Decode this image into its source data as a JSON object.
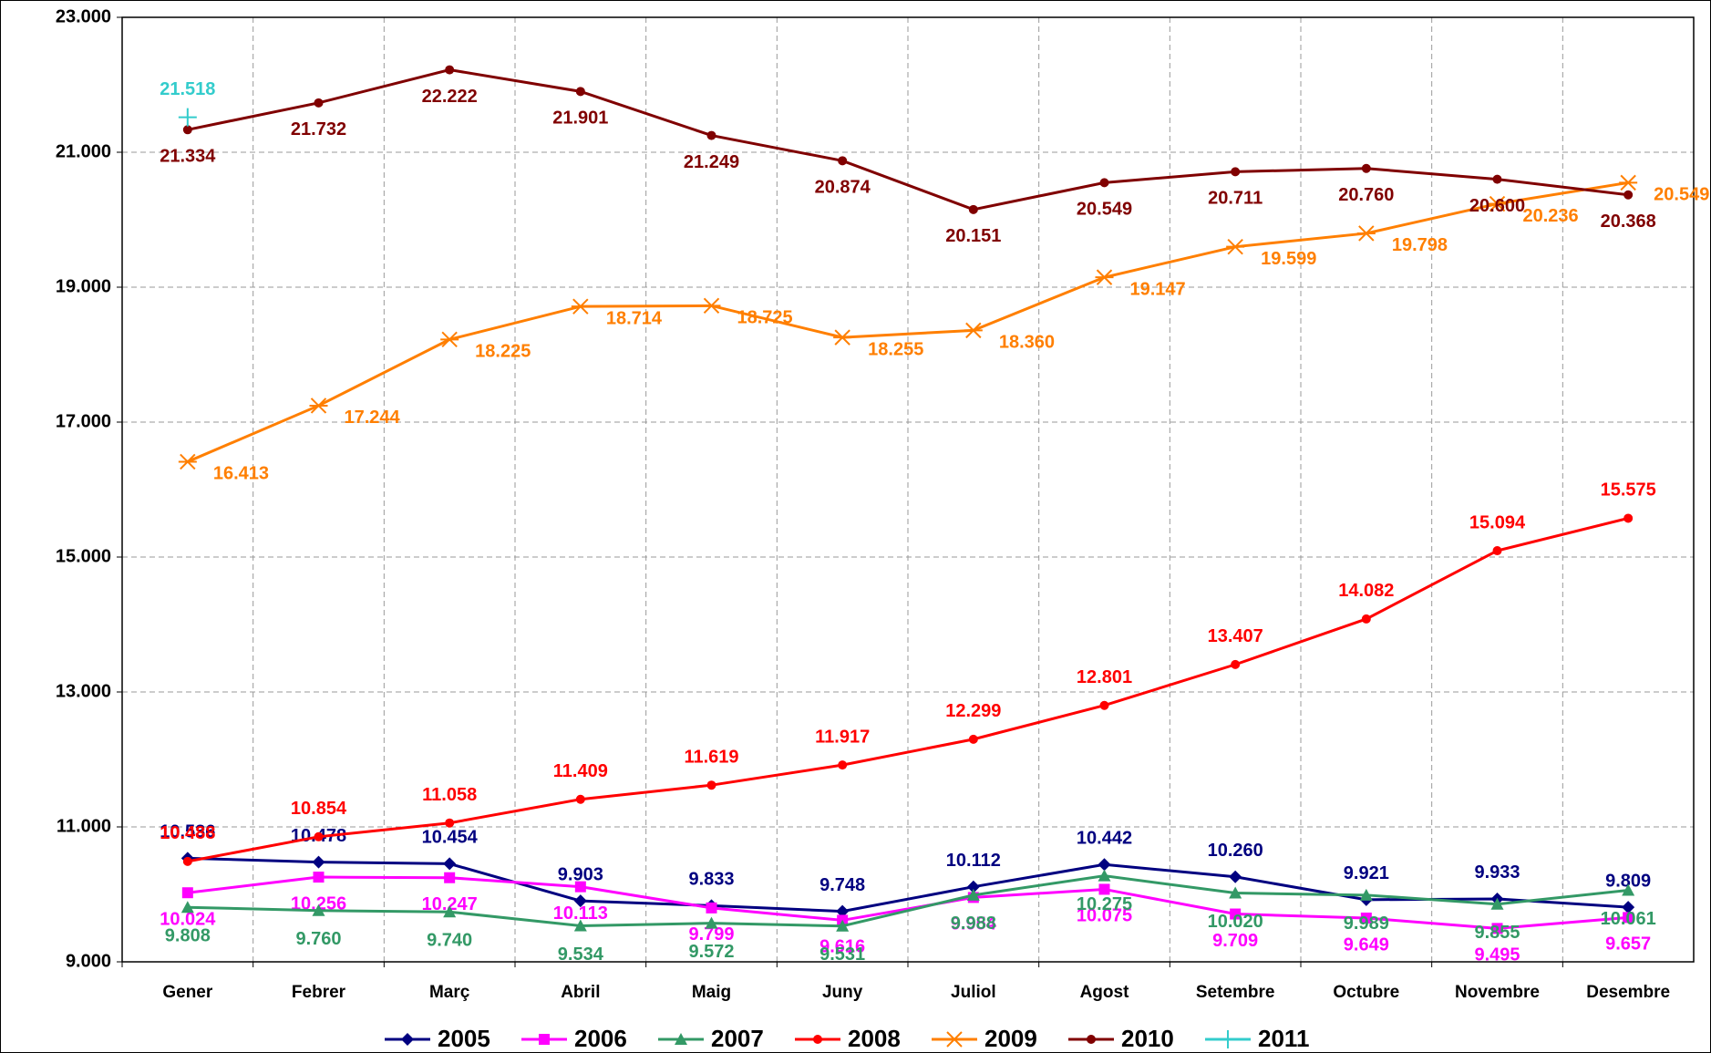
{
  "chart_data": {
    "type": "line",
    "categories": [
      "Gener",
      "Febrer",
      "Març",
      "Abril",
      "Maig",
      "Juny",
      "Juliol",
      "Agost",
      "Setembre",
      "Octubre",
      "Novembre",
      "Desembre"
    ],
    "ylim": [
      9000,
      23000
    ],
    "yticks": [
      {
        "value": 9000,
        "label": "9.000"
      },
      {
        "value": 11000,
        "label": "11.000"
      },
      {
        "value": 13000,
        "label": "13.000"
      },
      {
        "value": 15000,
        "label": "15.000"
      },
      {
        "value": 17000,
        "label": "17.000"
      },
      {
        "value": 19000,
        "label": "19.000"
      },
      {
        "value": 21000,
        "label": "21.000"
      },
      {
        "value": 23000,
        "label": "23.000"
      }
    ],
    "grid": true,
    "legend": "bottom",
    "series": [
      {
        "name": "2005",
        "color": "#000080",
        "marker": "diamond",
        "values": [
          10536,
          10478,
          10454,
          9903,
          9833,
          9748,
          10112,
          10442,
          10260,
          9921,
          9933,
          9809
        ],
        "value_labels": [
          "10.536",
          "10.478",
          "10.454",
          "9.903",
          "9.833",
          "9.748",
          "10.112",
          "10.442",
          "10.260",
          "9.921",
          "9.933",
          "9.809"
        ]
      },
      {
        "name": "2006",
        "color": "#ff00ff",
        "marker": "square",
        "values": [
          10024,
          10256,
          10247,
          10113,
          9799,
          9616,
          9954,
          10075,
          9709,
          9649,
          9495,
          9657
        ],
        "value_labels": [
          "10.024",
          "10.256",
          "10.247",
          "10.113",
          "9.799",
          "9.616",
          "9.954",
          "10.075",
          "9.709",
          "9.649",
          "9.495",
          "9.657"
        ]
      },
      {
        "name": "2007",
        "color": "#339966",
        "marker": "triangle",
        "values": [
          9808,
          9760,
          9740,
          9534,
          9572,
          9531,
          9988,
          10275,
          10020,
          9989,
          9855,
          10061
        ],
        "value_labels": [
          "9.808",
          "9.760",
          "9.740",
          "9.534",
          "9.572",
          "9.531",
          "9.988",
          "10.275",
          "10.020",
          "9.989",
          "9.855",
          "10.061"
        ]
      },
      {
        "name": "2008",
        "color": "#ff0000",
        "marker": "circle",
        "values": [
          10488,
          10854,
          11058,
          11409,
          11619,
          11917,
          12299,
          12801,
          13407,
          14082,
          15094,
          15575
        ],
        "value_labels": [
          "10.488",
          "10.854",
          "11.058",
          "11.409",
          "11.619",
          "11.917",
          "12.299",
          "12.801",
          "13.407",
          "14.082",
          "15.094",
          "15.575"
        ]
      },
      {
        "name": "2009",
        "color": "#ff7f00",
        "marker": "star",
        "values": [
          16413,
          17244,
          18225,
          18714,
          18725,
          18255,
          18360,
          19147,
          19599,
          19798,
          20236,
          20549
        ],
        "value_labels": [
          "16.413",
          "17.244",
          "18.225",
          "18.714",
          "18.725",
          "18.255",
          "18.360",
          "19.147",
          "19.599",
          "19.798",
          "20.236",
          "20.549"
        ]
      },
      {
        "name": "2010",
        "color": "#800000",
        "marker": "circle",
        "values": [
          21334,
          21732,
          22222,
          21901,
          21249,
          20874,
          20151,
          20549,
          20711,
          20760,
          20600,
          20368
        ],
        "value_labels": [
          "21.334",
          "21.732",
          "22.222",
          "21.901",
          "21.249",
          "20.874",
          "20.151",
          "20.549",
          "20.711",
          "20.760",
          "20.600",
          "20.368"
        ]
      },
      {
        "name": "2011",
        "color": "#33cccc",
        "marker": "plus",
        "values": [
          21518,
          null,
          null,
          null,
          null,
          null,
          null,
          null,
          null,
          null,
          null,
          null
        ],
        "value_labels": [
          "21.518",
          null,
          null,
          null,
          null,
          null,
          null,
          null,
          null,
          null,
          null,
          null
        ]
      }
    ]
  }
}
